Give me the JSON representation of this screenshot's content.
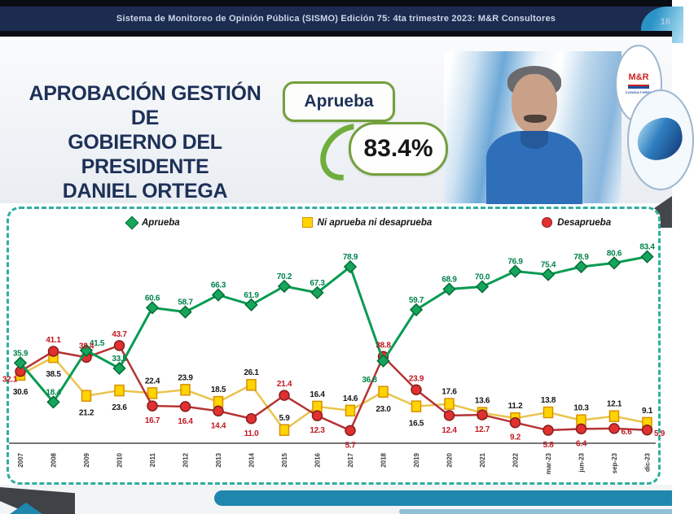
{
  "banner": {
    "text": "Sistema de Monitoreo de Opinión Pública (SISMO) Edición 75: 4ta trimestre 2023: M&R Consultores",
    "page_fragment": "16"
  },
  "header": {
    "title_lines": [
      "APROBACIÓN GESTIÓN DE",
      "GOBIERNO DEL PRESIDENTE",
      "DANIEL ORTEGA"
    ],
    "approval_label": "Aprueba",
    "approval_value": "83.4%",
    "mr_logo_text": "M&R",
    "mr_logo_sub": "CONSULTORES"
  },
  "chart_data": {
    "type": "line",
    "title": "Aprobación gestión de gobierno del Presidente Daniel Ortega",
    "categories": [
      "2007",
      "2008",
      "2009",
      "2010",
      "2011",
      "2012",
      "2013",
      "2014",
      "2015",
      "2016",
      "2017",
      "2018",
      "2019",
      "2020",
      "2021",
      "2022",
      "mar-23",
      "jun-23",
      "sep-23",
      "dic-23"
    ],
    "series": [
      {
        "name": "Aprueba",
        "marker": "diamond",
        "line_color": "#089b52",
        "marker_fill": "#15a65c",
        "marker_stroke": "#046b35",
        "label_color": "#00834a",
        "values": [
          "35.9",
          "18.4",
          "41.5",
          "33.5",
          "60.6",
          "58.7",
          "66.3",
          "61.9",
          "70.2",
          "67.3",
          "78.9",
          "36.8",
          "59.7",
          "68.9",
          "70.0",
          "76.9",
          "75.4",
          "78.9",
          "80.6",
          "83.4"
        ]
      },
      {
        "name": "Ni aprueba ni desaprueba",
        "marker": "square",
        "line_color": "#e9c44d",
        "marker_fill": "#ffd400",
        "marker_stroke": "#d98f00",
        "label_color": "#161616",
        "values": [
          "30.6",
          "38.5",
          "21.2",
          "23.6",
          "22.4",
          "23.9",
          "18.5",
          "26.1",
          "5.9",
          "16.4",
          "14.6",
          "23.0",
          "16.5",
          "17.6",
          "13.6",
          "11.2",
          "13.8",
          "10.3",
          "12.1",
          "9.1"
        ]
      },
      {
        "name": "Desaprueba",
        "marker": "circle",
        "line_color": "#b53333",
        "marker_fill": "#e23030",
        "marker_stroke": "#841f1f",
        "label_color": "#c01922",
        "values": [
          "32.1",
          "41.1",
          "38.4",
          "43.7",
          "16.7",
          "16.4",
          "14.4",
          "11.0",
          "21.4",
          "12.3",
          "5.7",
          "38.8",
          "23.9",
          "12.4",
          "12.7",
          "9.2",
          "5.8",
          "6.4",
          "6.6",
          "5.9"
        ]
      }
    ],
    "ylim": [
      0,
      90
    ],
    "grid": false,
    "legend_position": "top"
  }
}
